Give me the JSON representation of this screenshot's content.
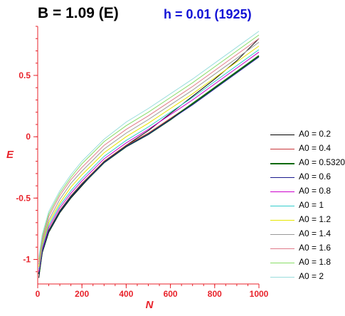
{
  "title_left": "B = 1.09 (E)",
  "title_right": "h = 0.01 (1925)",
  "chart_data": {
    "type": "line",
    "xlabel": "N",
    "ylabel": "E",
    "xlim": [
      0,
      1000
    ],
    "ylim": [
      -1.2,
      0.9
    ],
    "x_ticks": [
      0,
      200,
      400,
      600,
      800,
      1000
    ],
    "y_ticks": [
      -1,
      -0.5,
      0,
      0.5
    ],
    "x_tick_labels": [
      "0",
      "200",
      "400",
      "600",
      "800",
      "1000"
    ],
    "y_tick_labels": [
      "-1",
      "-0.5",
      "0",
      "0.5"
    ],
    "axis_color": "#e8232b",
    "legend_position": "right",
    "series": [
      {
        "name": "A0 = 0.2",
        "color": "#000000",
        "width": 1,
        "x": [
          5,
          20,
          50,
          100,
          150,
          200,
          250,
          300,
          400,
          500,
          600,
          700,
          800,
          900,
          1000
        ],
        "y": [
          -1.15,
          -0.95,
          -0.78,
          -0.62,
          -0.5,
          -0.4,
          -0.3,
          -0.2,
          -0.07,
          0.05,
          0.19,
          0.33,
          0.47,
          0.62,
          0.8
        ]
      },
      {
        "name": "A0 = 0.4",
        "color": "#c8363a",
        "width": 1,
        "x": [
          5,
          20,
          50,
          100,
          150,
          200,
          250,
          300,
          400,
          500,
          600,
          700,
          800,
          900,
          1000
        ],
        "y": [
          -1.1,
          -0.93,
          -0.76,
          -0.6,
          -0.48,
          -0.38,
          -0.29,
          -0.2,
          -0.07,
          0.03,
          0.15,
          0.27,
          0.4,
          0.53,
          0.66
        ]
      },
      {
        "name": "A0 = 0.5320",
        "color": "#0a6a0a",
        "width": 2,
        "x": [
          5,
          20,
          50,
          100,
          150,
          200,
          250,
          300,
          400,
          500,
          600,
          700,
          800,
          900,
          1000
        ],
        "y": [
          -1.12,
          -0.94,
          -0.77,
          -0.61,
          -0.49,
          -0.39,
          -0.3,
          -0.21,
          -0.08,
          0.02,
          0.14,
          0.27,
          0.4,
          0.53,
          0.66
        ]
      },
      {
        "name": "A0 = 0.6",
        "color": "#1a1a8c",
        "width": 1,
        "x": [
          5,
          20,
          50,
          100,
          150,
          200,
          250,
          300,
          400,
          500,
          600,
          700,
          800,
          900,
          1000
        ],
        "y": [
          -1.12,
          -0.94,
          -0.77,
          -0.61,
          -0.49,
          -0.39,
          -0.3,
          -0.21,
          -0.08,
          0.02,
          0.14,
          0.26,
          0.39,
          0.52,
          0.65
        ]
      },
      {
        "name": "A0 = 0.8",
        "color": "#cc00cc",
        "width": 1,
        "x": [
          5,
          20,
          50,
          100,
          150,
          200,
          250,
          300,
          400,
          500,
          600,
          700,
          800,
          900,
          1000
        ],
        "y": [
          -1.1,
          -0.92,
          -0.74,
          -0.58,
          -0.46,
          -0.36,
          -0.27,
          -0.18,
          -0.05,
          0.06,
          0.18,
          0.3,
          0.43,
          0.56,
          0.69
        ]
      },
      {
        "name": "A0 = 1",
        "color": "#33cccc",
        "width": 1,
        "x": [
          5,
          20,
          50,
          100,
          150,
          200,
          250,
          300,
          400,
          500,
          600,
          700,
          800,
          900,
          1000
        ],
        "y": [
          -1.08,
          -0.9,
          -0.72,
          -0.56,
          -0.44,
          -0.34,
          -0.25,
          -0.16,
          -0.03,
          0.08,
          0.2,
          0.32,
          0.45,
          0.58,
          0.71
        ]
      },
      {
        "name": "A0 = 1.2",
        "color": "#e6e600",
        "width": 1,
        "x": [
          5,
          20,
          50,
          100,
          150,
          200,
          250,
          300,
          400,
          500,
          600,
          700,
          800,
          900,
          1000
        ],
        "y": [
          -1.06,
          -0.88,
          -0.7,
          -0.54,
          -0.41,
          -0.31,
          -0.22,
          -0.13,
          0.0,
          0.11,
          0.23,
          0.35,
          0.48,
          0.61,
          0.74
        ]
      },
      {
        "name": "A0 = 1.4",
        "color": "#999999",
        "width": 1,
        "x": [
          5,
          20,
          50,
          100,
          150,
          200,
          250,
          300,
          400,
          500,
          600,
          700,
          800,
          900,
          1000
        ],
        "y": [
          -1.04,
          -0.86,
          -0.68,
          -0.51,
          -0.38,
          -0.28,
          -0.19,
          -0.1,
          0.03,
          0.14,
          0.26,
          0.38,
          0.51,
          0.64,
          0.77
        ]
      },
      {
        "name": "A0 = 1.6",
        "color": "#e07a8a",
        "width": 1,
        "x": [
          5,
          20,
          50,
          100,
          150,
          200,
          250,
          300,
          400,
          500,
          600,
          700,
          800,
          900,
          1000
        ],
        "y": [
          -1.02,
          -0.84,
          -0.65,
          -0.48,
          -0.35,
          -0.25,
          -0.16,
          -0.07,
          0.06,
          0.17,
          0.29,
          0.41,
          0.54,
          0.67,
          0.8
        ]
      },
      {
        "name": "A0 = 1.8",
        "color": "#88dd66",
        "width": 1,
        "x": [
          5,
          20,
          50,
          100,
          150,
          200,
          250,
          300,
          400,
          500,
          600,
          700,
          800,
          900,
          1000
        ],
        "y": [
          -1.0,
          -0.82,
          -0.63,
          -0.46,
          -0.33,
          -0.22,
          -0.13,
          -0.04,
          0.09,
          0.2,
          0.32,
          0.44,
          0.57,
          0.7,
          0.83
        ]
      },
      {
        "name": "A0 = 2",
        "color": "#99dddd",
        "width": 1,
        "x": [
          5,
          20,
          50,
          100,
          150,
          200,
          250,
          300,
          400,
          500,
          600,
          700,
          800,
          900,
          1000
        ],
        "y": [
          -0.98,
          -0.8,
          -0.61,
          -0.44,
          -0.31,
          -0.2,
          -0.11,
          -0.02,
          0.12,
          0.23,
          0.35,
          0.47,
          0.6,
          0.73,
          0.86
        ]
      }
    ]
  }
}
